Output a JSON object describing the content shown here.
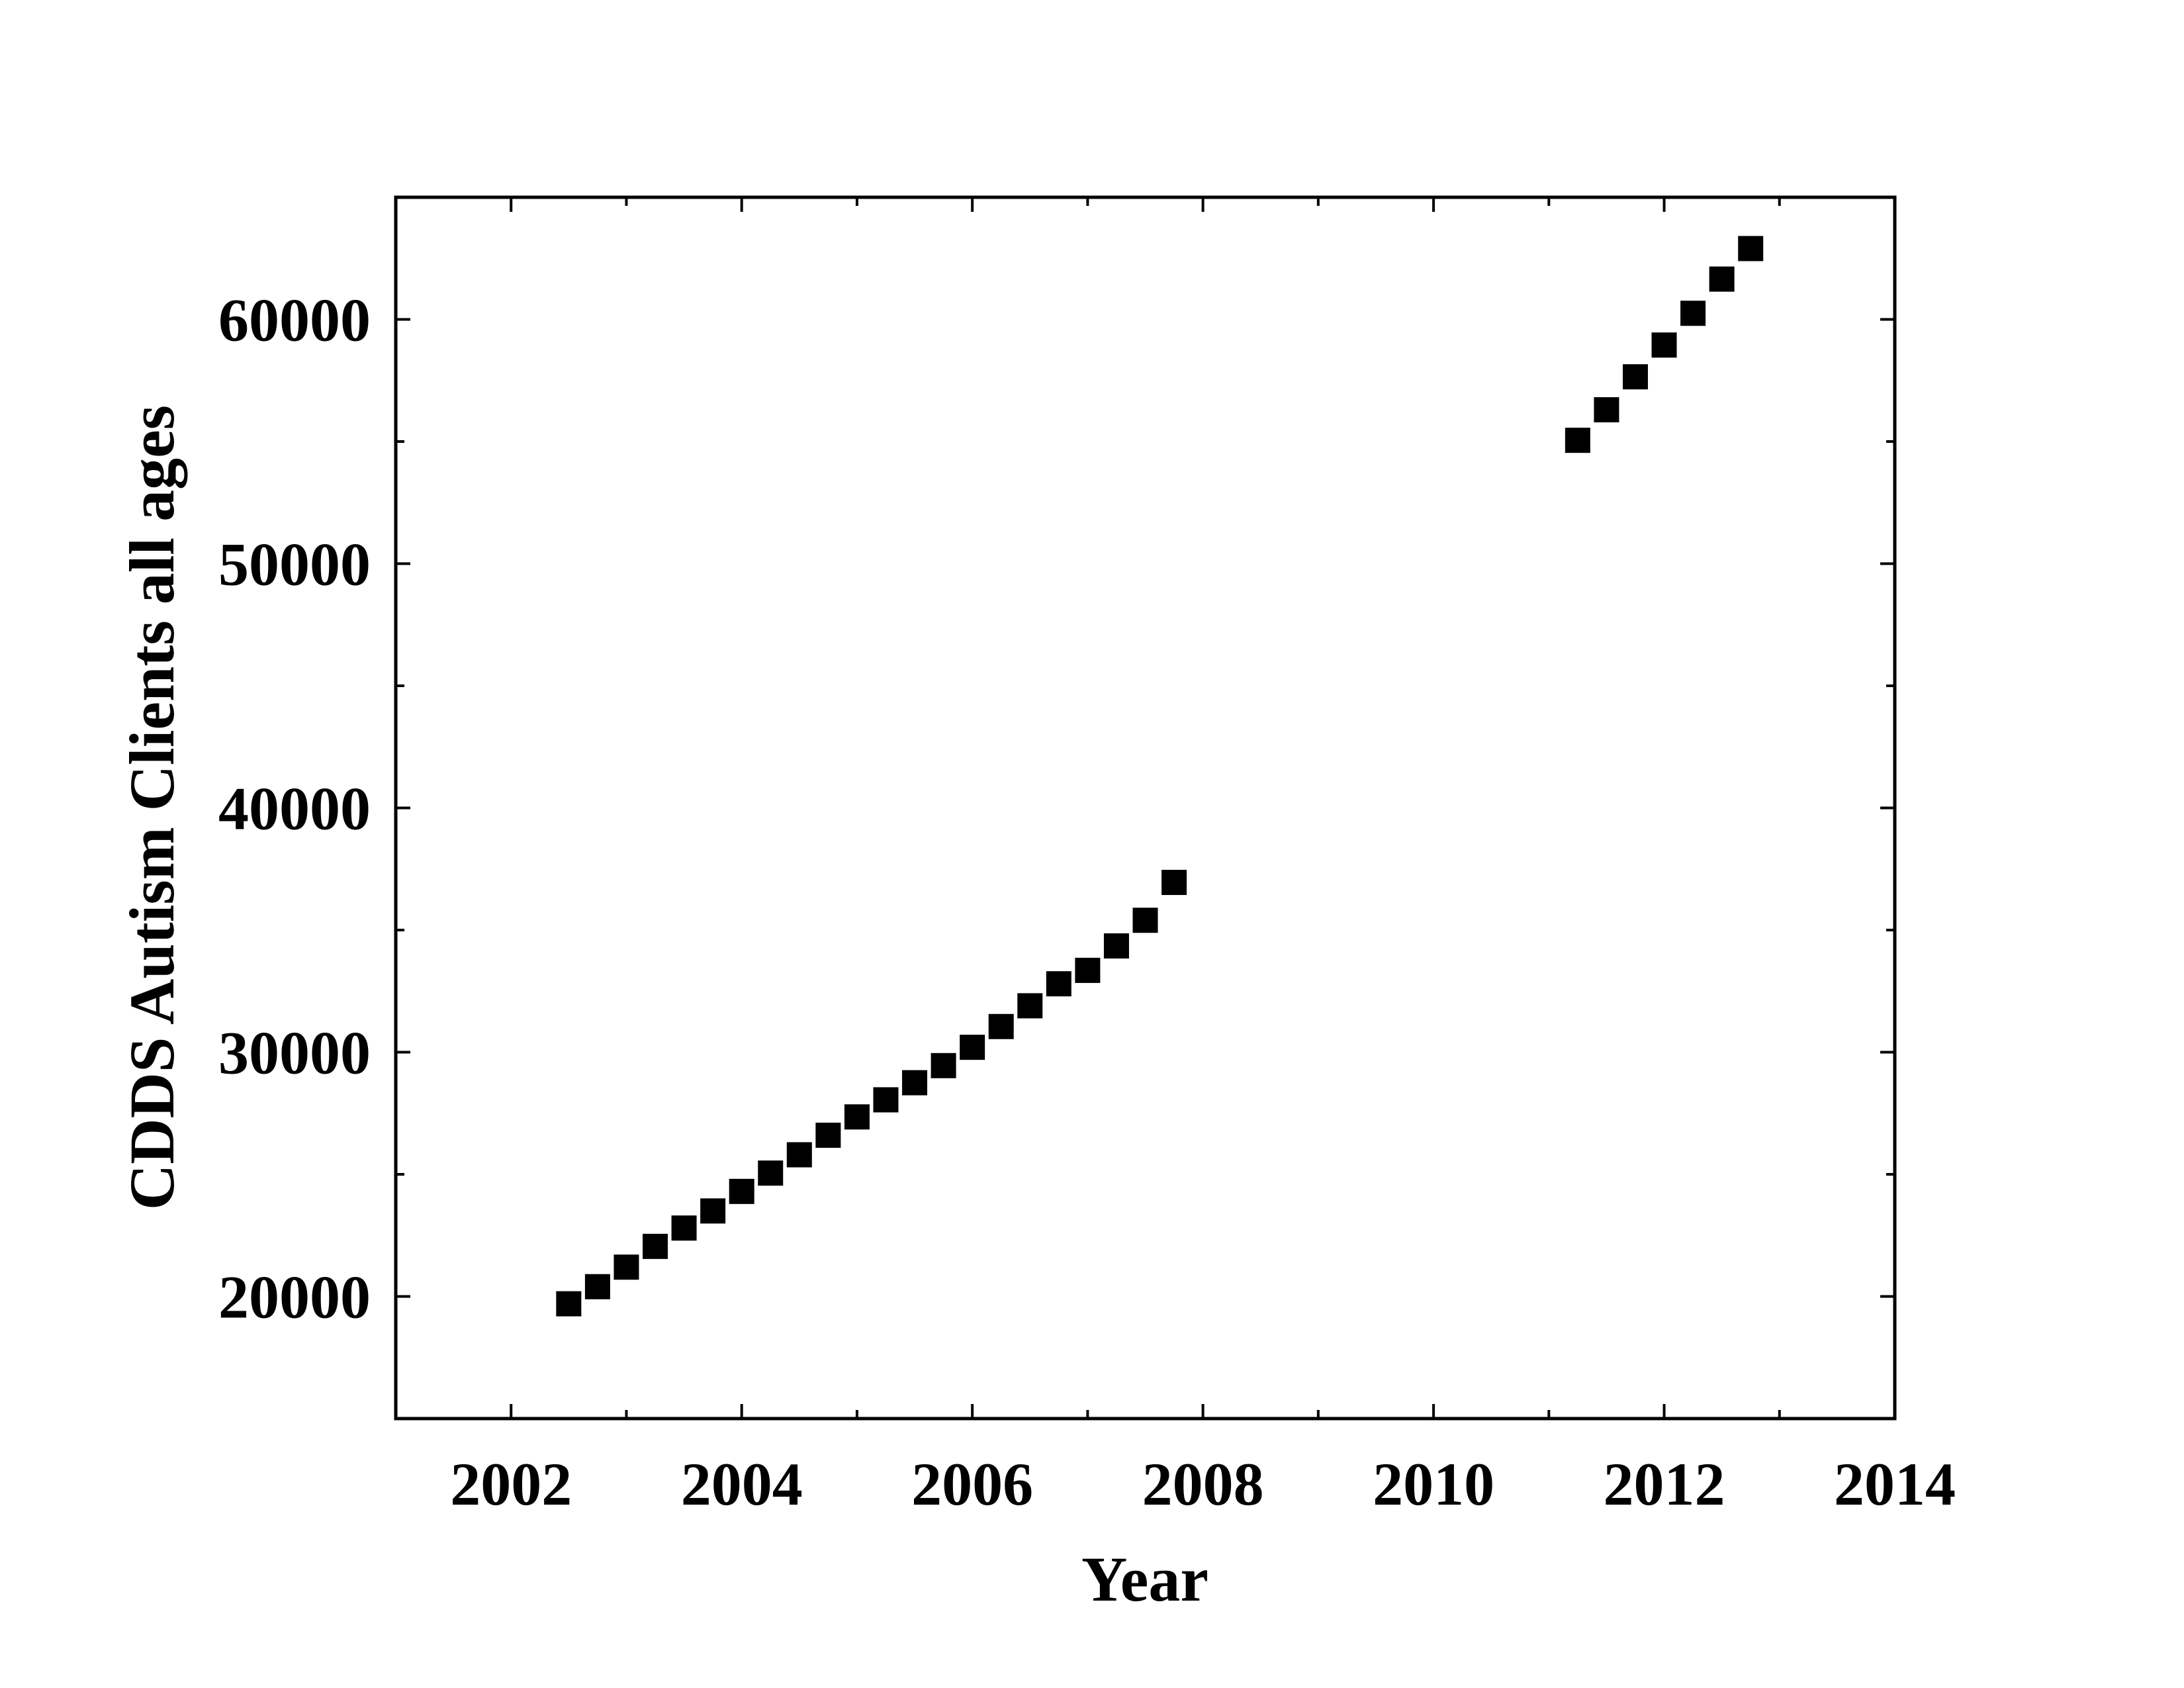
{
  "chart_data": {
    "type": "scatter",
    "title": "",
    "xlabel": "Year",
    "ylabel": "CDDS Autism Clients all ages",
    "xlim": [
      2001,
      2014
    ],
    "ylim": [
      15000,
      65000
    ],
    "x_ticks": [
      2002,
      2004,
      2006,
      2008,
      2010,
      2012,
      2014
    ],
    "x_minor_ticks": [
      2003,
      2005,
      2007,
      2009,
      2011,
      2013
    ],
    "y_ticks": [
      20000,
      30000,
      40000,
      50000,
      60000
    ],
    "y_minor_ticks": [
      25000,
      35000,
      45000,
      55000
    ],
    "x_tick_labels": [
      "2002",
      "2004",
      "2006",
      "2008",
      "2010",
      "2012",
      "2014"
    ],
    "y_tick_labels": [
      "20000",
      "30000",
      "40000",
      "50000",
      "60000"
    ],
    "grid": false,
    "legend": "none",
    "marker": "filled-square",
    "marker_color": "#000000",
    "series": [
      {
        "points": [
          {
            "x": 2002.5,
            "y": 19700
          },
          {
            "x": 2002.75,
            "y": 20400
          },
          {
            "x": 2003.0,
            "y": 21200
          },
          {
            "x": 2003.25,
            "y": 22050
          },
          {
            "x": 2003.5,
            "y": 22800
          },
          {
            "x": 2003.75,
            "y": 23500
          },
          {
            "x": 2004.0,
            "y": 24300
          },
          {
            "x": 2004.25,
            "y": 25050
          },
          {
            "x": 2004.5,
            "y": 25800
          },
          {
            "x": 2004.75,
            "y": 26600
          },
          {
            "x": 2005.0,
            "y": 27350
          },
          {
            "x": 2005.25,
            "y": 28050
          },
          {
            "x": 2005.5,
            "y": 28750
          },
          {
            "x": 2005.75,
            "y": 29450
          },
          {
            "x": 2006.0,
            "y": 30200
          },
          {
            "x": 2006.25,
            "y": 31050
          },
          {
            "x": 2006.5,
            "y": 31900
          },
          {
            "x": 2006.75,
            "y": 32800
          },
          {
            "x": 2007.0,
            "y": 33350
          },
          {
            "x": 2007.25,
            "y": 34350
          },
          {
            "x": 2007.5,
            "y": 35400
          },
          {
            "x": 2007.75,
            "y": 36950
          },
          {
            "x": 2011.25,
            "y": 55050
          },
          {
            "x": 2011.5,
            "y": 56300
          },
          {
            "x": 2011.75,
            "y": 57650
          },
          {
            "x": 2012.0,
            "y": 58950
          },
          {
            "x": 2012.25,
            "y": 60250
          },
          {
            "x": 2012.5,
            "y": 61650
          },
          {
            "x": 2012.75,
            "y": 62900
          }
        ]
      }
    ]
  }
}
